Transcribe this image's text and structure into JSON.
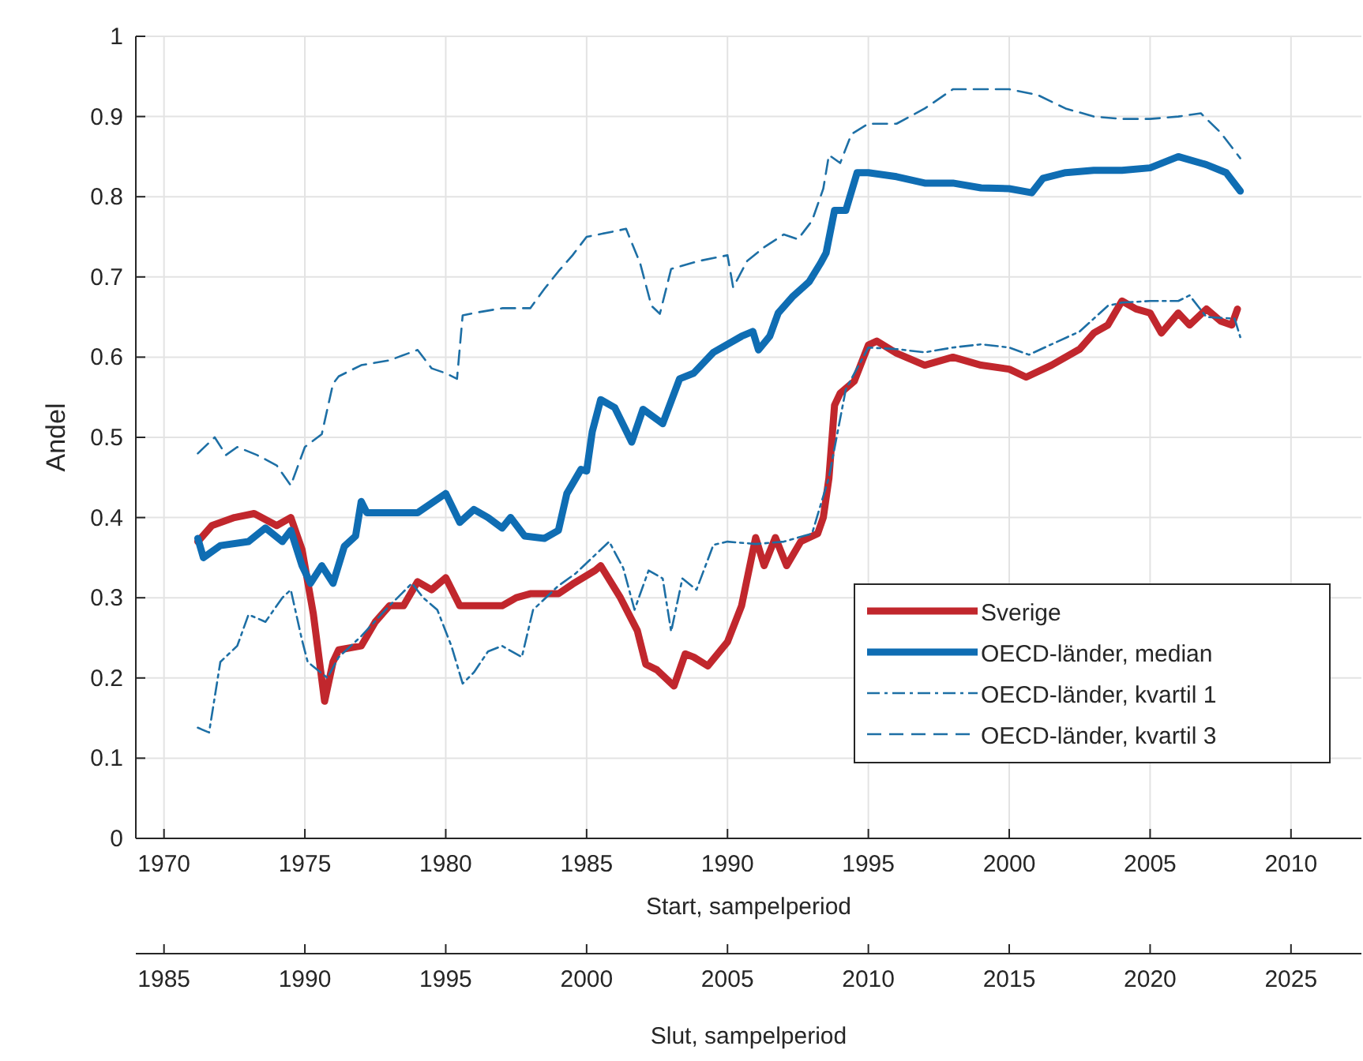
{
  "chart_data": {
    "type": "line",
    "xlabel": "Start, sampelperiod",
    "x2label": "Slut, sampelperiod",
    "ylabel": "Andel",
    "xlim": [
      1969,
      2012.5
    ],
    "xticks": [
      1970,
      1975,
      1980,
      1985,
      1990,
      1995,
      2000,
      2005,
      2010
    ],
    "x2lim": [
      1984,
      2027.5
    ],
    "x2ticks": [
      1985,
      1990,
      1995,
      2000,
      2005,
      2010,
      2015,
      2020,
      2025
    ],
    "ylim": [
      0,
      1
    ],
    "yticks": [
      0,
      0.1,
      0.2,
      0.3,
      0.4,
      0.5,
      0.6,
      0.7,
      0.8,
      0.9,
      1
    ],
    "grid": true,
    "legend": "bottom right",
    "series": [
      {
        "name": "Sverige",
        "color": "#c1272d",
        "line_style": "solid",
        "x": [
          1971.2,
          1971.7,
          1972.5,
          1973.2,
          1974,
          1974.5,
          1974.9,
          1975.3,
          1975.7,
          1976,
          1976.2,
          1977,
          1977.5,
          1978,
          1978.5,
          1979,
          1979.5,
          1980,
          1980.5,
          1981,
          1982,
          1982.5,
          1983,
          1984,
          1984.5,
          1985.3,
          1985.5,
          1986.2,
          1986.8,
          1987.1,
          1987.5,
          1988.1,
          1988.5,
          1988.8,
          1989.3,
          1990,
          1990.5,
          1991,
          1991.3,
          1991.7,
          1992.1,
          1992.6,
          1993.2,
          1993.4,
          1993.6,
          1993.8,
          1994,
          1994.5,
          1995,
          1995.3,
          1996,
          1997,
          1998,
          1999,
          2000,
          2000.6,
          2001.5,
          2002.5,
          2003,
          2003.5,
          2004,
          2004.5,
          2005,
          2005.4,
          2006,
          2006.4,
          2007,
          2007.5,
          2007.9,
          2008.1
        ],
        "values": [
          0.37,
          0.39,
          0.4,
          0.405,
          0.39,
          0.4,
          0.36,
          0.28,
          0.171,
          0.22,
          0.235,
          0.24,
          0.27,
          0.29,
          0.29,
          0.32,
          0.31,
          0.325,
          0.29,
          0.29,
          0.29,
          0.3,
          0.305,
          0.305,
          0.317,
          0.334,
          0.34,
          0.3,
          0.259,
          0.217,
          0.21,
          0.19,
          0.23,
          0.226,
          0.215,
          0.245,
          0.29,
          0.375,
          0.34,
          0.375,
          0.34,
          0.37,
          0.38,
          0.4,
          0.449,
          0.54,
          0.555,
          0.57,
          0.615,
          0.62,
          0.605,
          0.59,
          0.6,
          0.59,
          0.585,
          0.575,
          0.59,
          0.61,
          0.63,
          0.64,
          0.67,
          0.66,
          0.655,
          0.63,
          0.655,
          0.64,
          0.66,
          0.645,
          0.64,
          0.66
        ]
      },
      {
        "name": "OECD-länder, median",
        "color": "#0f6db3",
        "line_style": "solid",
        "x": [
          1971.2,
          1971.4,
          1972,
          1973,
          1973.6,
          1974.2,
          1974.5,
          1974.9,
          1975.2,
          1975.6,
          1976,
          1976.4,
          1976.8,
          1977,
          1977.2,
          1978,
          1979,
          1980,
          1980.5,
          1981,
          1981.5,
          1982,
          1982.3,
          1982.8,
          1983.5,
          1984,
          1984.3,
          1984.8,
          1985,
          1985.2,
          1985.5,
          1986,
          1986.6,
          1987,
          1987.7,
          1988.3,
          1988.8,
          1989.5,
          1990.5,
          1990.9,
          1991.1,
          1991.5,
          1991.8,
          1992.3,
          1992.9,
          1993.3,
          1993.5,
          1993.8,
          1994.2,
          1994.6,
          1995,
          1996,
          1997,
          1998,
          1999,
          2000,
          2000.8,
          2001.2,
          2002,
          2003,
          2004,
          2005,
          2006,
          2007,
          2007.7,
          2008.2
        ],
        "values": [
          0.374,
          0.35,
          0.365,
          0.37,
          0.387,
          0.37,
          0.384,
          0.34,
          0.318,
          0.34,
          0.318,
          0.364,
          0.377,
          0.42,
          0.406,
          0.406,
          0.406,
          0.43,
          0.394,
          0.41,
          0.4,
          0.387,
          0.4,
          0.377,
          0.374,
          0.384,
          0.43,
          0.46,
          0.458,
          0.507,
          0.547,
          0.537,
          0.494,
          0.535,
          0.517,
          0.573,
          0.58,
          0.606,
          0.626,
          0.632,
          0.609,
          0.626,
          0.655,
          0.675,
          0.694,
          0.717,
          0.73,
          0.783,
          0.783,
          0.83,
          0.83,
          0.825,
          0.817,
          0.817,
          0.811,
          0.81,
          0.805,
          0.823,
          0.83,
          0.833,
          0.833,
          0.836,
          0.85,
          0.84,
          0.83,
          0.807
        ]
      },
      {
        "name": "OECD-länder, kvartil 1",
        "color": "#1d6fa5",
        "line_style": "dashdot",
        "x": [
          1971.2,
          1971.6,
          1972,
          1972.6,
          1973,
          1973.6,
          1974.2,
          1974.5,
          1974.9,
          1975.1,
          1975.8,
          1976.2,
          1977,
          1978,
          1978.8,
          1979.2,
          1979.7,
          1980.2,
          1980.6,
          1981,
          1981.5,
          1982,
          1982.7,
          1983.1,
          1984,
          1984.6,
          1985.2,
          1985.8,
          1986.3,
          1986.7,
          1987.2,
          1987.7,
          1988,
          1988.4,
          1988.9,
          1989.5,
          1990,
          1991,
          1992,
          1993,
          1993.6,
          1994.2,
          1995,
          1996,
          1997,
          1998,
          1999,
          2000,
          2000.7,
          2001.5,
          2002.5,
          2003,
          2003.5,
          2004,
          2005,
          2006,
          2006.4,
          2007,
          2008,
          2008.2
        ],
        "values": [
          0.138,
          0.132,
          0.22,
          0.24,
          0.279,
          0.27,
          0.3,
          0.31,
          0.247,
          0.22,
          0.2,
          0.226,
          0.252,
          0.29,
          0.318,
          0.3,
          0.285,
          0.24,
          0.193,
          0.207,
          0.233,
          0.24,
          0.226,
          0.285,
          0.315,
          0.33,
          0.35,
          0.37,
          0.337,
          0.285,
          0.334,
          0.324,
          0.258,
          0.324,
          0.31,
          0.366,
          0.37,
          0.367,
          0.37,
          0.38,
          0.45,
          0.56,
          0.612,
          0.61,
          0.606,
          0.612,
          0.616,
          0.612,
          0.603,
          0.616,
          0.632,
          0.648,
          0.664,
          0.668,
          0.67,
          0.67,
          0.677,
          0.65,
          0.648,
          0.625
        ]
      },
      {
        "name": "OECD-länder, kvartil 3",
        "color": "#1d6fa5",
        "line_style": "dashed",
        "x": [
          1971.2,
          1971.8,
          1972.2,
          1972.6,
          1973.3,
          1974,
          1974.5,
          1975,
          1975.6,
          1976,
          1976.2,
          1977,
          1978,
          1979,
          1979.5,
          1980,
          1980.4,
          1980.6,
          1981,
          1982,
          1983,
          1983.5,
          1984,
          1984.5,
          1985,
          1986,
          1986.4,
          1986.9,
          1987.3,
          1987.6,
          1988,
          1989,
          1990,
          1990.2,
          1990.7,
          1991.3,
          1992,
          1992.5,
          1993,
          1993.4,
          1993.6,
          1994,
          1994.4,
          1995,
          1996,
          1997,
          1998,
          1999,
          2000,
          2001,
          2002,
          2003,
          2004,
          2005,
          2006,
          2006.8,
          2007.5,
          2008.2
        ],
        "values": [
          0.48,
          0.5,
          0.478,
          0.488,
          0.478,
          0.465,
          0.44,
          0.488,
          0.504,
          0.567,
          0.576,
          0.59,
          0.596,
          0.609,
          0.586,
          0.58,
          0.573,
          0.652,
          0.655,
          0.661,
          0.661,
          0.685,
          0.707,
          0.727,
          0.75,
          0.757,
          0.76,
          0.717,
          0.664,
          0.654,
          0.71,
          0.72,
          0.727,
          0.687,
          0.72,
          0.737,
          0.753,
          0.747,
          0.77,
          0.81,
          0.852,
          0.842,
          0.878,
          0.891,
          0.891,
          0.91,
          0.934,
          0.934,
          0.934,
          0.927,
          0.91,
          0.9,
          0.897,
          0.897,
          0.9,
          0.904,
          0.88,
          0.848
        ]
      }
    ]
  }
}
